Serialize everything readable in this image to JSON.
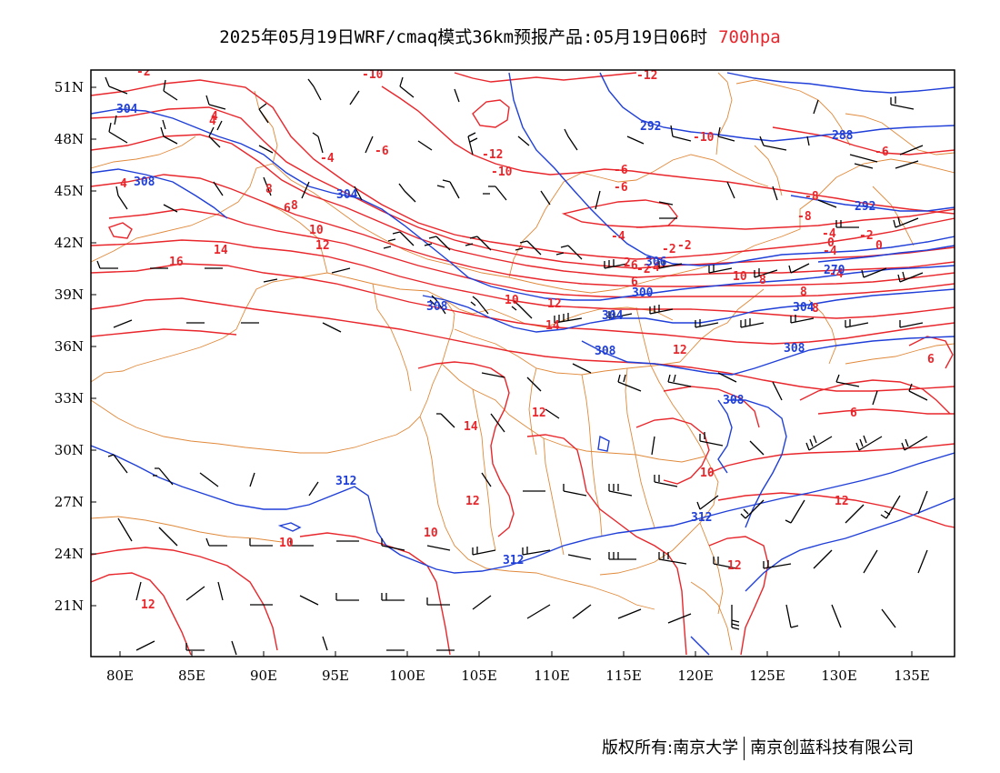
{
  "title": {
    "main": "2025年05月19日WRF/cmaq模式36km预报产品:05月19日06时",
    "level": "700hpa"
  },
  "footer": {
    "left": "版权所有:南京大学",
    "right": "南京创蓝科技有限公司"
  },
  "colors": {
    "temperature": "#e8262b",
    "height": "#1f3fd8",
    "border": "#e0893a",
    "wind": "#000000",
    "level": "#e8262b"
  },
  "axes": {
    "x_labels": [
      "80E",
      "85E",
      "90E",
      "95E",
      "100E",
      "105E",
      "110E",
      "115E",
      "120E",
      "125E",
      "130E",
      "135E"
    ],
    "y_labels": [
      "51N",
      "48N",
      "45N",
      "42N",
      "39N",
      "36N",
      "33N",
      "30N",
      "27N",
      "24N",
      "21N"
    ]
  },
  "contour_labels": {
    "temperature": [
      "-2",
      "4",
      "-10",
      "-12",
      "-4",
      "-6",
      "-12",
      "-10",
      "-10",
      "-6",
      "-6",
      "-8",
      "-4",
      "-6",
      "4",
      "8",
      "6",
      "4",
      "8",
      "10",
      "12",
      "14",
      "16",
      "-4",
      "-2",
      "0",
      "-2",
      "-8",
      "-4",
      "-2",
      "-6",
      "-2",
      "-4",
      "2",
      "0",
      "6",
      "10",
      "8",
      "-4",
      "8",
      "8",
      "10",
      "12",
      "14",
      "12",
      "12",
      "6",
      "6",
      "14",
      "12",
      "12",
      "10",
      "10",
      "10",
      "12",
      "12"
    ],
    "height": [
      "304",
      "292",
      "288",
      "308",
      "304",
      "292",
      "306",
      "300",
      "270",
      "308",
      "304",
      "304",
      "308",
      "308",
      "308",
      "312",
      "312",
      "312"
    ]
  }
}
